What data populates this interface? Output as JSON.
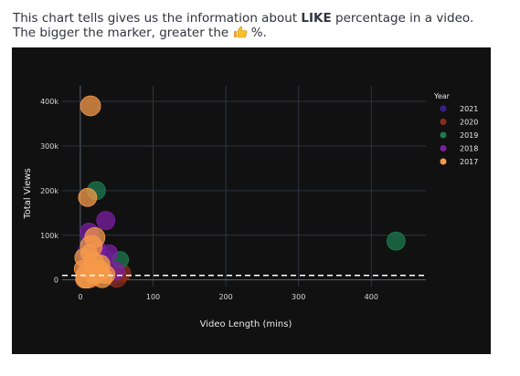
{
  "caption": {
    "part1": "This chart tells gives us the information about ",
    "bold": "LIKE",
    "part2": " percentage in a video.",
    "line2_pre": "The bigger the marker, greater the ",
    "line2_post": " %.",
    "icon": "thumbs-up-emoji"
  },
  "chart_data": {
    "type": "scatter",
    "xlabel": "Video Length (mins)",
    "ylabel": "Total Views",
    "xlim": [
      -25,
      475
    ],
    "ylim": [
      -15000,
      435000
    ],
    "xticks": [
      0,
      100,
      200,
      300,
      400
    ],
    "xtick_labels": [
      "0",
      "100",
      "200",
      "300",
      "400"
    ],
    "yticks": [
      0,
      100000,
      200000,
      300000,
      400000
    ],
    "ytick_labels": [
      "0",
      "100k",
      "200k",
      "300k",
      "400k"
    ],
    "grid": true,
    "reference_line": {
      "y": 10000,
      "style": "dashed"
    },
    "legend": {
      "title": "Year",
      "placement": "right"
    },
    "background": "#111111",
    "series": [
      {
        "name": "2021",
        "color": "#3a1e8c",
        "points": [
          [
            8,
            60000,
            10
          ],
          [
            12,
            25000,
            12
          ],
          [
            22,
            40000,
            8
          ],
          [
            30,
            15000,
            10
          ],
          [
            45,
            8000,
            9
          ],
          [
            15,
            85000,
            11
          ],
          [
            35,
            50000,
            8
          ]
        ]
      },
      {
        "name": "2020",
        "color": "#8b2d1a",
        "points": [
          [
            10,
            20000,
            9
          ],
          [
            25,
            12000,
            10
          ],
          [
            50,
            6000,
            11
          ],
          [
            58,
            15000,
            9
          ],
          [
            40,
            25000,
            8
          ],
          [
            18,
            5000,
            10
          ]
        ]
      },
      {
        "name": "2019",
        "color": "#1c7a4f",
        "points": [
          [
            22,
            200000,
            10
          ],
          [
            55,
            45000,
            9
          ],
          [
            434,
            87000,
            10
          ],
          [
            18,
            10000,
            8
          ],
          [
            30,
            30000,
            9
          ]
        ]
      },
      {
        "name": "2018",
        "color": "#7b1fa2",
        "points": [
          [
            35,
            133000,
            10
          ],
          [
            12,
            107000,
            10
          ],
          [
            40,
            60000,
            9
          ],
          [
            25,
            70000,
            8
          ],
          [
            48,
            20000,
            10
          ],
          [
            8,
            30000,
            9
          ]
        ]
      },
      {
        "name": "2017",
        "color": "#f59a4a",
        "points": [
          [
            14,
            390000,
            11
          ],
          [
            10,
            185000,
            10
          ],
          [
            20,
            95000,
            11
          ],
          [
            15,
            75000,
            12
          ],
          [
            5,
            50000,
            10
          ],
          [
            18,
            40000,
            11
          ],
          [
            25,
            20000,
            12
          ],
          [
            10,
            8000,
            13
          ],
          [
            30,
            5000,
            11
          ],
          [
            6,
            2000,
            10
          ],
          [
            20,
            15000,
            12
          ],
          [
            35,
            12000,
            10
          ],
          [
            12,
            60000,
            9
          ],
          [
            28,
            35000,
            10
          ],
          [
            3,
            25000,
            9
          ]
        ]
      }
    ]
  }
}
